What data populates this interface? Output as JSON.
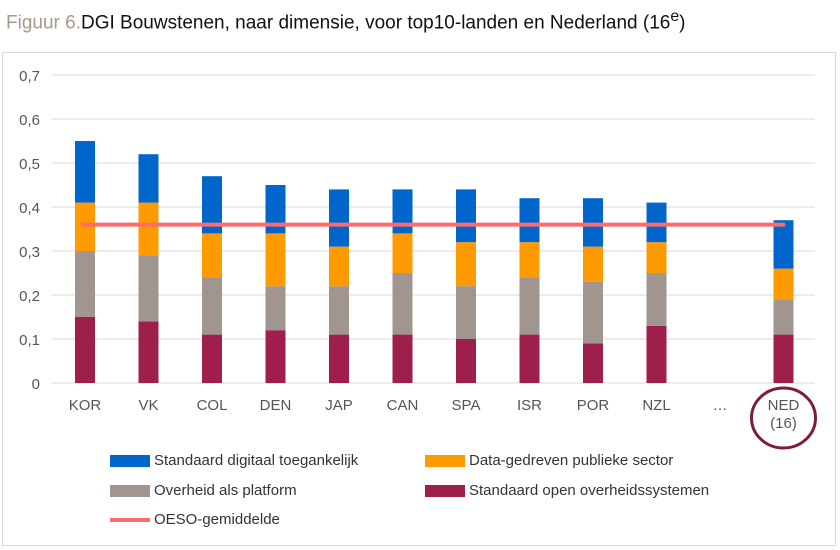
{
  "title": {
    "prefix": "Figuur 6.",
    "text": "DGI Bouwstenen, naar dimensie, voor top10-landen en Nederland (16",
    "sup": "e",
    ")": ")",
    "suffix": ")"
  },
  "chart_data": {
    "type": "bar",
    "stacked": true,
    "categories": [
      "KOR",
      "VK",
      "COL",
      "DEN",
      "JAP",
      "CAN",
      "SPA",
      "ISR",
      "POR",
      "NZL",
      "…",
      "NED\n(16)"
    ],
    "ylim": [
      0,
      0.7
    ],
    "yticks": [
      "0",
      "0,1",
      "0,2",
      "0,3",
      "0,4",
      "0,5",
      "0,6",
      "0,7"
    ],
    "grid": true,
    "legend": "bottom",
    "series": [
      {
        "name": "Standaard open overheidssystemen",
        "color": "#9e1f4b",
        "values": [
          0.15,
          0.14,
          0.11,
          0.12,
          0.11,
          0.11,
          0.1,
          0.11,
          0.09,
          0.13,
          null,
          0.11
        ]
      },
      {
        "name": "Overheid als platform",
        "color": "#a0958f",
        "values": [
          0.15,
          0.15,
          0.13,
          0.1,
          0.11,
          0.14,
          0.12,
          0.13,
          0.14,
          0.12,
          null,
          0.08
        ]
      },
      {
        "name": "Data-gedreven publieke sector",
        "color": "#ff9a00",
        "values": [
          0.11,
          0.12,
          0.1,
          0.12,
          0.09,
          0.09,
          0.1,
          0.08,
          0.08,
          0.07,
          null,
          0.07
        ]
      },
      {
        "name": "Standaard digitaal toegankelijk",
        "color": "#0066cc",
        "values": [
          0.14,
          0.11,
          0.13,
          0.11,
          0.13,
          0.1,
          0.12,
          0.1,
          0.11,
          0.09,
          null,
          0.11
        ]
      }
    ],
    "reference_line": {
      "name": "OESO-gemiddelde",
      "value": 0.36,
      "color": "#ff6b6b"
    },
    "highlight": {
      "category": "NED\n(16)",
      "color": "#7a1f3a"
    }
  }
}
